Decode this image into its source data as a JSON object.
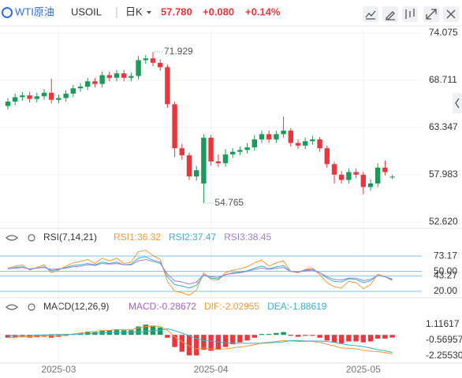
{
  "header": {
    "name": "WTI原油",
    "symbol": "USOIL",
    "period": "日K",
    "price": "57.780",
    "change": "+0.080",
    "change_pct": "+0.14%"
  },
  "chart_data": [
    {
      "type": "candlestick",
      "up_color": "#1b9a5c",
      "down_color": "#e8373e",
      "categories": [
        null,
        null,
        null,
        null,
        null,
        null,
        null,
        "2025-03",
        null,
        null,
        null,
        null,
        null,
        null,
        null,
        null,
        null,
        null,
        null,
        null,
        null,
        null,
        null,
        null,
        null,
        null,
        null,
        null,
        "2025-04",
        null,
        null,
        null,
        null,
        null,
        null,
        null,
        null,
        null,
        null,
        null,
        null,
        null,
        null,
        null,
        null,
        null,
        null,
        null,
        null,
        "2025-05",
        null,
        null,
        null,
        null
      ],
      "open": [
        65.8,
        66.3,
        66.8,
        67.0,
        66.6,
        66.9,
        67.3,
        66.5,
        66.7,
        67.2,
        67.8,
        68.0,
        68.6,
        68.3,
        69.3,
        69.0,
        69.5,
        69.0,
        69.2,
        71.0,
        71.2,
        70.7,
        70.2,
        66.0,
        61.0,
        60.2,
        57.8,
        57.0,
        62.2,
        59.5,
        59.3,
        60.3,
        60.6,
        60.8,
        61.1,
        62.0,
        62.6,
        62.0,
        62.6,
        63.0,
        61.6,
        61.3,
        61.8,
        62.0,
        61.0,
        59.2,
        58.0,
        57.4,
        58.3,
        58.0,
        56.6,
        57.0,
        58.8,
        57.7
      ],
      "high": [
        66.7,
        67.2,
        67.4,
        67.4,
        67.3,
        67.7,
        68.9,
        67.1,
        67.6,
        68.2,
        68.4,
        69.0,
        69.0,
        69.7,
        69.7,
        69.9,
        69.9,
        69.6,
        71.5,
        71.6,
        71.929,
        71.1,
        70.5,
        66.3,
        61.5,
        60.5,
        59.0,
        62.6,
        62.5,
        60.3,
        60.9,
        61.0,
        61.2,
        61.6,
        62.5,
        63.0,
        63.0,
        63.0,
        64.6,
        63.3,
        62.0,
        62.2,
        62.4,
        62.3,
        61.3,
        59.5,
        58.4,
        58.7,
        58.7,
        58.3,
        57.5,
        59.3,
        59.6,
        58.0
      ],
      "low": [
        65.4,
        65.9,
        66.4,
        66.2,
        66.2,
        66.5,
        66.1,
        66.1,
        66.3,
        66.8,
        67.4,
        67.6,
        67.9,
        67.9,
        68.6,
        68.6,
        68.6,
        68.6,
        68.8,
        70.6,
        70.3,
        69.8,
        65.6,
        60.0,
        59.7,
        57.4,
        57.3,
        54.765,
        59.0,
        58.9,
        58.9,
        59.9,
        60.2,
        60.4,
        60.7,
        61.6,
        61.6,
        61.6,
        62.2,
        61.2,
        60.9,
        60.9,
        61.4,
        60.6,
        58.8,
        57.0,
        57.0,
        57.0,
        57.6,
        55.8,
        56.2,
        56.6,
        57.9,
        57.5
      ],
      "close": [
        66.3,
        66.8,
        67.0,
        66.6,
        66.9,
        67.3,
        66.5,
        66.7,
        67.2,
        67.8,
        68.0,
        68.6,
        68.3,
        69.3,
        69.0,
        69.5,
        69.0,
        69.2,
        71.0,
        71.2,
        70.7,
        70.2,
        66.0,
        61.0,
        60.2,
        57.8,
        58.5,
        62.2,
        59.5,
        59.3,
        60.3,
        60.6,
        60.8,
        61.1,
        62.0,
        62.6,
        62.0,
        62.6,
        63.0,
        61.6,
        61.3,
        61.8,
        62.0,
        61.0,
        59.2,
        58.0,
        57.4,
        58.3,
        58.0,
        56.6,
        57.0,
        58.8,
        58.3,
        57.78
      ],
      "ylim": [
        52.62,
        74.075
      ],
      "yticks": [
        74.075,
        68.711,
        63.347,
        57.983,
        {
          "value": 52.62,
          "label": "52.620"
        }
      ],
      "grid": true
    },
    {
      "type": "line",
      "title": "RSI(7,14,21)",
      "ylim": [
        14,
        90
      ],
      "yticks": [
        73.17,
        {
          "value": 50,
          "label": "50.00"
        },
        43.27,
        {
          "value": 20,
          "label": "20.00"
        }
      ],
      "series": [
        {
          "name": "RSI1:36.32",
          "color": "#f39a33",
          "values": [
            55,
            58,
            60,
            52,
            56,
            60,
            48,
            52,
            58,
            63,
            65,
            68,
            62,
            70,
            66,
            70,
            62,
            64,
            80,
            82,
            74,
            68,
            35,
            20,
            18,
            14,
            22,
            48,
            38,
            37,
            48,
            52,
            54,
            57,
            63,
            67,
            58,
            63,
            66,
            50,
            48,
            53,
            55,
            45,
            33,
            27,
            25,
            35,
            33,
            24,
            30,
            46,
            42,
            36.32
          ]
        },
        {
          "name": "RSI2:37.47",
          "color": "#38b2cc",
          "values": [
            54,
            56,
            57,
            53,
            55,
            57,
            51,
            53,
            56,
            59,
            60,
            62,
            60,
            64,
            62,
            64,
            60,
            61,
            70,
            72,
            67,
            64,
            42,
            30,
            28,
            25,
            29,
            45,
            40,
            39,
            45,
            48,
            49,
            51,
            55,
            58,
            54,
            57,
            59,
            50,
            49,
            52,
            53,
            48,
            40,
            35,
            34,
            39,
            38,
            33,
            36,
            44,
            42,
            37.47
          ]
        },
        {
          "name": "RSI3:38.45",
          "color": "#a47fd3",
          "values": [
            54,
            55,
            56,
            54,
            55,
            56,
            53,
            54,
            55,
            57,
            58,
            60,
            59,
            62,
            61,
            62,
            60,
            60,
            66,
            68,
            65,
            62,
            46,
            36,
            34,
            31,
            34,
            45,
            42,
            41,
            45,
            47,
            48,
            50,
            53,
            55,
            53,
            55,
            56,
            50,
            49,
            51,
            52,
            48,
            42,
            38,
            37,
            40,
            40,
            36,
            38,
            44,
            42,
            38.45
          ]
        }
      ]
    },
    {
      "type": "macd",
      "title": "MACD(12,26,9)",
      "ylim": [
        -2.93,
        2.55
      ],
      "yticks": [
        1.11617,
        -0.56957,
        {
          "value": -2.2553,
          "label": "-2.25530"
        }
      ],
      "up_color": "#1b9a5c",
      "down_color": "#e8373e",
      "series": [
        {
          "name": "MACD:-0.28672",
          "color": "#a15fc9",
          "kind": "bar",
          "values": [
            -0.3,
            -0.3,
            -0.25,
            -0.3,
            -0.25,
            -0.2,
            -0.3,
            -0.2,
            -0.1,
            0.1,
            0.2,
            0.35,
            0.3,
            0.5,
            0.5,
            0.6,
            0.5,
            0.5,
            0.9,
            1.1,
            1.0,
            0.8,
            -0.3,
            -1.3,
            -1.8,
            -2.2,
            -2.2,
            -1.6,
            -1.7,
            -1.6,
            -1.3,
            -1.0,
            -0.8,
            -0.6,
            -0.3,
            0.1,
            0.1,
            0.2,
            0.3,
            -0.1,
            -0.2,
            -0.1,
            -0.1,
            -0.3,
            -0.6,
            -0.8,
            -0.9,
            -0.7,
            -0.7,
            -0.8,
            -0.7,
            -0.4,
            -0.4,
            -0.28672
          ]
        },
        {
          "name": "DIF:-2.02955",
          "color": "#f39a33",
          "kind": "line",
          "values": [
            -0.3,
            -0.25,
            -0.2,
            -0.2,
            -0.15,
            -0.1,
            -0.12,
            -0.05,
            0,
            0.1,
            0.2,
            0.3,
            0.35,
            0.45,
            0.5,
            0.55,
            0.55,
            0.55,
            0.75,
            0.9,
            0.95,
            0.9,
            0.5,
            -0.2,
            -0.7,
            -1.2,
            -1.5,
            -1.4,
            -1.5,
            -1.55,
            -1.5,
            -1.4,
            -1.3,
            -1.2,
            -1.05,
            -0.85,
            -0.8,
            -0.7,
            -0.6,
            -0.65,
            -0.7,
            -0.7,
            -0.7,
            -0.8,
            -1.0,
            -1.2,
            -1.4,
            -1.45,
            -1.5,
            -1.65,
            -1.75,
            -1.8,
            -1.9,
            -2.02955
          ]
        },
        {
          "name": "DEA:-1.88619",
          "color": "#38b2cc",
          "kind": "line",
          "values": [
            -0.15,
            -0.1,
            -0.08,
            -0.05,
            -0.03,
            0,
            0.03,
            0.05,
            0.05,
            0.05,
            0.1,
            0.12,
            0.2,
            0.2,
            0.25,
            0.25,
            0.3,
            0.3,
            0.3,
            0.35,
            0.45,
            0.5,
            0.65,
            0.45,
            0.2,
            -0.1,
            -0.4,
            -0.6,
            -0.65,
            -0.75,
            -0.85,
            -0.9,
            -0.9,
            -0.9,
            -0.9,
            -0.9,
            -0.85,
            -0.8,
            -0.75,
            -0.6,
            -0.6,
            -0.65,
            -0.65,
            -0.65,
            -0.7,
            -0.8,
            -0.95,
            -1.1,
            -1.15,
            -1.25,
            -1.4,
            -1.6,
            -1.7,
            -1.88619
          ]
        }
      ]
    }
  ]
}
